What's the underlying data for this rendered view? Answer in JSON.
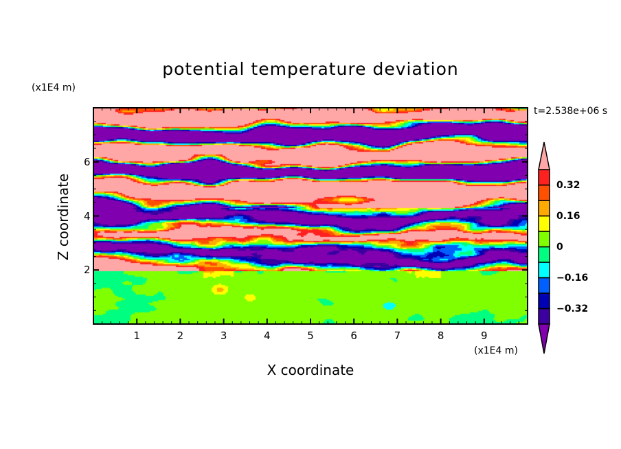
{
  "chart_data": {
    "type": "heatmap",
    "title": "potential temperature deviation",
    "xlabel": "X coordinate",
    "ylabel": "Z coordinate",
    "x_unit": "(x1E4 m)",
    "y_unit": "(x1E4 m)",
    "time_label": "t=2.538e+06 s",
    "xlim": [
      0,
      10
    ],
    "ylim": [
      0,
      8
    ],
    "x_ticks": [
      1,
      2,
      3,
      4,
      5,
      6,
      7,
      8,
      9
    ],
    "x_tick_labels": [
      "1",
      "2",
      "3",
      "4",
      "5",
      "6",
      "7",
      "8",
      "9"
    ],
    "y_ticks": [
      2,
      4,
      6
    ],
    "y_tick_labels": [
      "2",
      "4",
      "6"
    ],
    "levels": [
      -0.4,
      -0.32,
      -0.24,
      -0.16,
      -0.08,
      0,
      0.08,
      0.16,
      0.24,
      0.32,
      0.4
    ],
    "colors": [
      "#8000b0",
      "#3c00a0",
      "#0000b4",
      "#0060ff",
      "#00ffff",
      "#00ff80",
      "#80ff00",
      "#ffff00",
      "#ffaa00",
      "#ff5000",
      "#ff2020",
      "#ffa6a6"
    ],
    "colorbar": {
      "labels": [
        "0.32",
        "0.16",
        "0",
        "-0.16",
        "-0.32"
      ],
      "label_values": [
        0.32,
        0.16,
        0,
        -0.16,
        -0.32
      ],
      "extend": "both"
    },
    "description_regions": {
      "lower_layer_z_below": 2,
      "lower_layer_range": [
        -0.08,
        0.08
      ],
      "upper_layer_range": [
        -0.5,
        0.5
      ]
    }
  }
}
